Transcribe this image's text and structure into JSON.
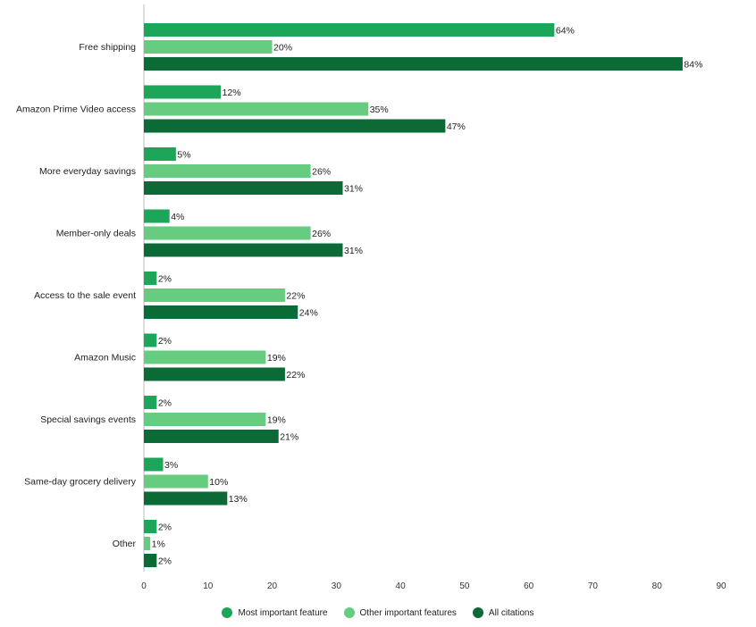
{
  "chart_data": {
    "type": "bar",
    "orientation": "horizontal",
    "title": "",
    "xlabel": "",
    "ylabel": "",
    "xlim": [
      0,
      90
    ],
    "xticks": [
      0,
      10,
      20,
      30,
      40,
      50,
      60,
      70,
      80,
      90
    ],
    "grid": false,
    "legend_position": "bottom",
    "categories": [
      "Free shipping",
      "Amazon Prime Video access",
      "More everyday savings",
      "Member-only deals",
      "Access to the sale event",
      "Amazon Music",
      "Special savings events",
      "Same-day grocery delivery",
      "Other"
    ],
    "series": [
      {
        "name": "Most important feature",
        "color": "#1da659",
        "values": [
          64,
          12,
          5,
          4,
          2,
          2,
          2,
          3,
          2
        ]
      },
      {
        "name": "Other important features",
        "color": "#66cc80",
        "values": [
          20,
          35,
          26,
          26,
          22,
          19,
          19,
          10,
          1
        ]
      },
      {
        "name": "All citations",
        "color": "#0b6a35",
        "values": [
          84,
          47,
          31,
          31,
          24,
          22,
          21,
          13,
          2
        ]
      }
    ],
    "value_labels": [
      [
        "64%",
        "20%",
        "84%"
      ],
      [
        "12%",
        "35%",
        "47%"
      ],
      [
        "5%",
        "26%",
        "31%"
      ],
      [
        "4%",
        "26%",
        "31%"
      ],
      [
        "2%",
        "22%",
        "24%"
      ],
      [
        "2%",
        "19%",
        "22%"
      ],
      [
        "2%",
        "19%",
        "21%"
      ],
      [
        "3%",
        "10%",
        "13%"
      ],
      [
        "2%",
        "1%",
        "2%"
      ]
    ]
  }
}
